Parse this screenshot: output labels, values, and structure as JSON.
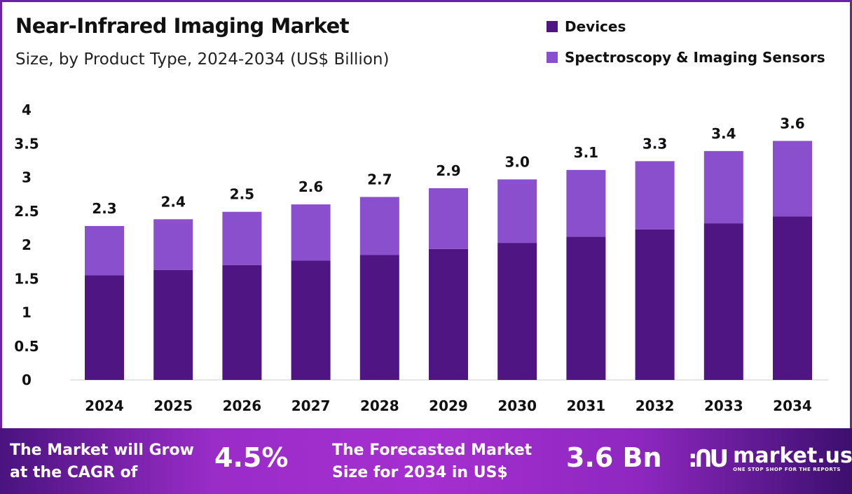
{
  "chart_data": {
    "type": "bar",
    "stacked": true,
    "title": "Near-Infrared Imaging Market",
    "subtitle": "Size, by Product Type, 2024-2034 (US$ Billion)",
    "categories": [
      "2024",
      "2025",
      "2026",
      "2027",
      "2028",
      "2029",
      "2030",
      "2031",
      "2032",
      "2033",
      "2034"
    ],
    "series": [
      {
        "name": "Devices",
        "color": "#4e1583",
        "values": [
          1.55,
          1.63,
          1.7,
          1.77,
          1.85,
          1.94,
          2.03,
          2.12,
          2.23,
          2.32,
          2.42
        ]
      },
      {
        "name": "Spectroscopy & Imaging Sensors",
        "color": "#8a4fcc",
        "values": [
          0.73,
          0.75,
          0.79,
          0.83,
          0.86,
          0.9,
          0.94,
          0.99,
          1.01,
          1.07,
          1.12
        ]
      }
    ],
    "totals_labels": [
      "2.3",
      "2.4",
      "2.5",
      "2.6",
      "2.7",
      "2.9",
      "3.0",
      "3.1",
      "3.3",
      "3.4",
      "3.6"
    ],
    "yticks": [
      "0",
      "0.5",
      "1",
      "1.5",
      "2",
      "2.5",
      "3",
      "3.5",
      "4"
    ],
    "ylim": [
      0,
      4
    ],
    "grid": false,
    "legend": "top-right"
  },
  "footer": {
    "cagr_text_1": "The Market will Grow",
    "cagr_text_2": "at the CAGR of",
    "cagr_value": "4.5%",
    "forecast_text_1": "The Forecasted Market",
    "forecast_text_2": "Size for 2034 in US$",
    "forecast_value": "3.6 Bn",
    "logo_name": "market.us",
    "logo_tagline": "ONE STOP SHOP FOR THE REPORTS"
  }
}
